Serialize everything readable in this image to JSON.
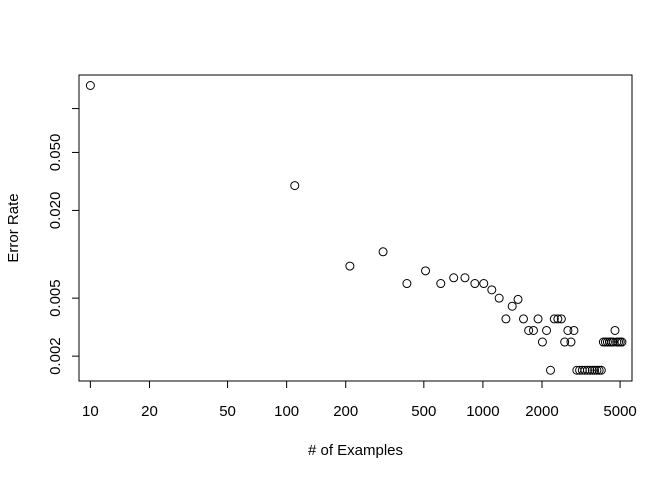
{
  "chart_data": {
    "type": "scatter",
    "title": "",
    "xlabel": "# of Examples",
    "ylabel": "Error Rate",
    "x_scale": "log",
    "y_scale": "log",
    "xlim": [
      8.75,
      5750
    ],
    "ylim": [
      0.00135,
      0.17
    ],
    "grid": false,
    "legend": "none",
    "x_ticks": [
      {
        "value": 10,
        "label": "10"
      },
      {
        "value": 20,
        "label": "20"
      },
      {
        "value": 50,
        "label": "50"
      },
      {
        "value": 100,
        "label": "100"
      },
      {
        "value": 200,
        "label": "200"
      },
      {
        "value": 500,
        "label": "500"
      },
      {
        "value": 1000,
        "label": "1000"
      },
      {
        "value": 2000,
        "label": "2000"
      },
      {
        "value": 5000,
        "label": "5000"
      }
    ],
    "y_ticks": [
      {
        "value": 0.002,
        "label": "0.002"
      },
      {
        "value": 0.005,
        "label": "0.005"
      },
      {
        "value": 0.02,
        "label": "0.020"
      },
      {
        "value": 0.05,
        "label": "0.050"
      },
      {
        "value": 0.1,
        "label": ""
      }
    ],
    "series": [
      {
        "name": "",
        "points": [
          [
            10,
            0.144
          ],
          [
            110,
            0.0296
          ],
          [
            210,
            0.0083
          ],
          [
            310,
            0.0104
          ],
          [
            410,
            0.0063
          ],
          [
            510,
            0.0077
          ],
          [
            610,
            0.0063
          ],
          [
            710,
            0.0069
          ],
          [
            810,
            0.0069
          ],
          [
            910,
            0.0063
          ],
          [
            1010,
            0.0063
          ],
          [
            1110,
            0.0057
          ],
          [
            1210,
            0.005
          ],
          [
            1310,
            0.0036
          ],
          [
            1410,
            0.0044
          ],
          [
            1510,
            0.0049
          ],
          [
            1610,
            0.0036
          ],
          [
            1710,
            0.003
          ],
          [
            1810,
            0.003
          ],
          [
            1910,
            0.0036
          ],
          [
            2010,
            0.0025
          ],
          [
            2110,
            0.003
          ],
          [
            2210,
            0.0016
          ],
          [
            2310,
            0.0036
          ],
          [
            2410,
            0.0036
          ],
          [
            2510,
            0.0036
          ],
          [
            2610,
            0.0025
          ],
          [
            2710,
            0.003
          ],
          [
            2810,
            0.0025
          ],
          [
            2910,
            0.003
          ],
          [
            3010,
            0.0016
          ],
          [
            3110,
            0.0016
          ],
          [
            3210,
            0.0016
          ],
          [
            3310,
            0.0016
          ],
          [
            3410,
            0.0016
          ],
          [
            3510,
            0.0016
          ],
          [
            3610,
            0.0016
          ],
          [
            3710,
            0.0016
          ],
          [
            3810,
            0.0016
          ],
          [
            3910,
            0.0016
          ],
          [
            4010,
            0.0016
          ],
          [
            4110,
            0.0025
          ],
          [
            4210,
            0.0025
          ],
          [
            4310,
            0.0025
          ],
          [
            4410,
            0.0025
          ],
          [
            4510,
            0.0025
          ],
          [
            4610,
            0.0025
          ],
          [
            4710,
            0.003
          ],
          [
            4810,
            0.0025
          ],
          [
            4910,
            0.0025
          ],
          [
            5010,
            0.0025
          ],
          [
            5110,
            0.0025
          ]
        ]
      }
    ]
  }
}
